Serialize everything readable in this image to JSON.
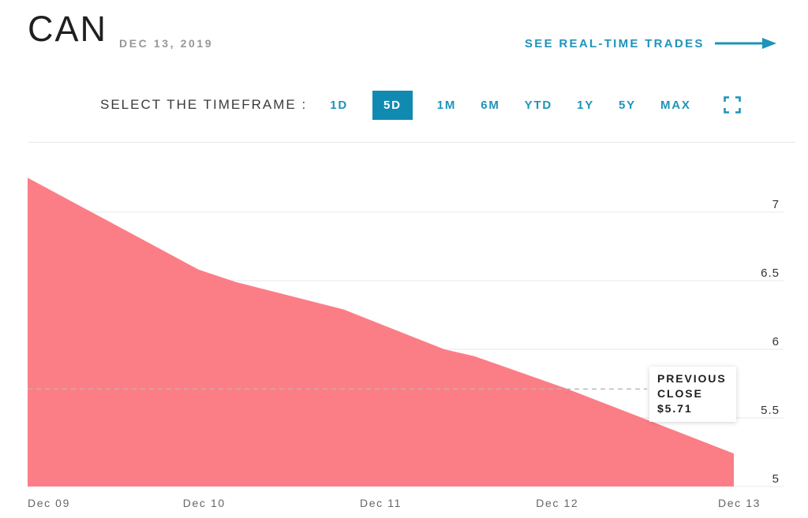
{
  "header": {
    "symbol": "CAN",
    "date": "DEC 13, 2019",
    "trades_link": "SEE REAL-TIME TRADES"
  },
  "timeframe": {
    "label": "SELECT THE TIMEFRAME :",
    "options": [
      {
        "label": "1D",
        "selected": false
      },
      {
        "label": "5D",
        "selected": true
      },
      {
        "label": "1M",
        "selected": false
      },
      {
        "label": "6M",
        "selected": false
      },
      {
        "label": "YTD",
        "selected": false
      },
      {
        "label": "1Y",
        "selected": false
      },
      {
        "label": "5Y",
        "selected": false
      },
      {
        "label": "MAX",
        "selected": false
      }
    ],
    "fullscreen_icon": "fullscreen-expand"
  },
  "chart_data": {
    "type": "area",
    "categories": [
      "Dec 09",
      "Dec 10",
      "Dec 11",
      "Dec 12",
      "Dec 13"
    ],
    "values": [
      7.25,
      6.57,
      6.15,
      5.72,
      5.24
    ],
    "points": [
      [
        0.0,
        7.25
      ],
      [
        0.97,
        6.58
      ],
      [
        1.18,
        6.49
      ],
      [
        1.79,
        6.29
      ],
      [
        2.36,
        6.0
      ],
      [
        2.53,
        5.95
      ],
      [
        3.06,
        5.71
      ],
      [
        4.0,
        5.24
      ]
    ],
    "y_ticks": [
      7,
      6.5,
      6,
      5.5,
      5
    ],
    "ylim": [
      4.95,
      7.3
    ],
    "xlabel": "",
    "ylabel": "",
    "grid": true,
    "legend": false,
    "previous_close": 5.71,
    "annotation": {
      "label": "PREVIOUS CLOSE",
      "value": "$5.71"
    },
    "colors": {
      "area": "#FB7E87",
      "accent": "#1E94B9",
      "selected_bg": "#118AB2",
      "gridline": "#E8E8E8",
      "dashed_line": "#B5B5B5",
      "y_tick_text": "#333333",
      "x_tick_text": "#666666"
    }
  }
}
